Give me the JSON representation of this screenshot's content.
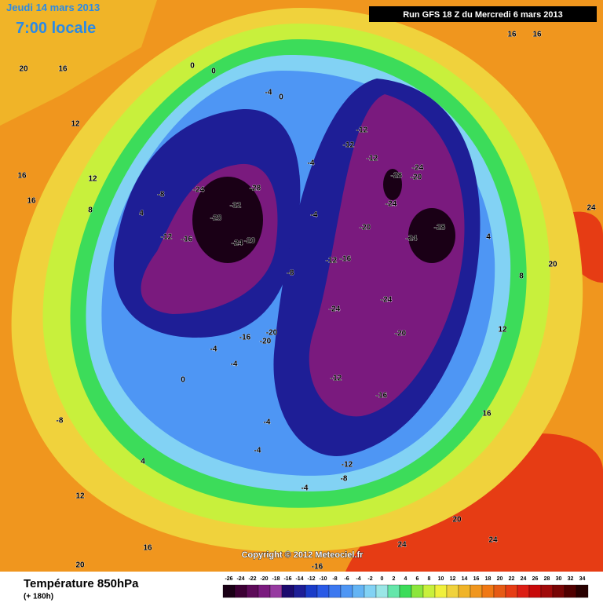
{
  "header": {
    "date": "Jeudi 14 mars 2013",
    "time": "7:00 locale",
    "run": "Run GFS 18 Z du Mercredi 6 mars 2013"
  },
  "footer": {
    "title": "Température 850hPa",
    "subtitle": "(+ 180h)",
    "copyright": "Copyright © 2012 Meteociel.fr"
  },
  "colorbar": {
    "ticks": [
      -26,
      -24,
      -22,
      -20,
      -18,
      -16,
      -14,
      -12,
      -10,
      -8,
      -6,
      -4,
      -2,
      0,
      2,
      4,
      6,
      8,
      10,
      12,
      14,
      16,
      18,
      20,
      22,
      24,
      26,
      28,
      30,
      32,
      34
    ],
    "colors": [
      "#1a0016",
      "#3c0034",
      "#5c0a58",
      "#7a1a7e",
      "#963aa0",
      "#1c0a6e",
      "#1e1e96",
      "#1a3cc8",
      "#2a5ae6",
      "#3c78f0",
      "#4e96f4",
      "#64b4f4",
      "#82d2f4",
      "#9ae6e6",
      "#64e6aa",
      "#3cdc5a",
      "#8ce63c",
      "#c8f03c",
      "#f0f03c",
      "#f0d23c",
      "#f0b428",
      "#f0961e",
      "#f07814",
      "#e65a14",
      "#e63c14",
      "#dc1e14",
      "#c80a0a",
      "#a00a0a",
      "#780505",
      "#500000",
      "#280000"
    ]
  },
  "map": {
    "labels": [
      -32,
      -28,
      -28,
      -24,
      -24,
      -20,
      -16,
      -12,
      -8,
      -28,
      -24,
      -20,
      -24,
      -28,
      -24,
      -20,
      -16,
      -12,
      -24,
      -24,
      -20,
      -20,
      -20,
      -16,
      -12,
      -16,
      -12,
      -12,
      -12,
      -8,
      -4,
      -4,
      -4,
      0,
      0,
      0,
      -4,
      -4,
      0,
      -4,
      -4,
      -8,
      -12,
      -4,
      4,
      8,
      4,
      12,
      16,
      20,
      24,
      16,
      16,
      20,
      16,
      12,
      16,
      12,
      16,
      8,
      4,
      -8,
      12,
      16,
      20,
      -16,
      20,
      24,
      24
    ]
  }
}
